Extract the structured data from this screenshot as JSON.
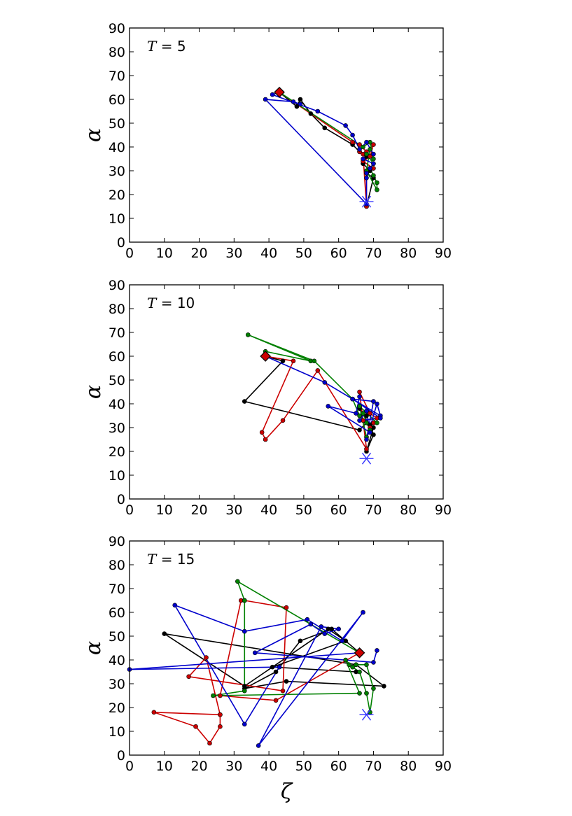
{
  "chart_data": [
    {
      "type": "line",
      "title": "T = 5",
      "title_var": "T",
      "title_value": "= 5",
      "xlabel": "",
      "ylabel": "α",
      "xlim": [
        0,
        90
      ],
      "ylim": [
        0,
        90
      ],
      "xticks": [
        0,
        10,
        20,
        30,
        40,
        50,
        60,
        70,
        80,
        90
      ],
      "yticks": [
        0,
        10,
        20,
        30,
        40,
        50,
        60,
        70,
        80,
        90
      ],
      "grid": false,
      "start_marker": {
        "x": 43,
        "y": 63,
        "color": "#cc0000"
      },
      "target_marker": {
        "x": 68,
        "y": 17,
        "color": "#3333ff"
      },
      "series": [
        {
          "color": "#000000",
          "points": [
            [
              43,
              63
            ],
            [
              48,
              57
            ],
            [
              49,
              60
            ],
            [
              52,
              54
            ],
            [
              56,
              48
            ],
            [
              64,
              41
            ],
            [
              66,
              38
            ],
            [
              68,
              36
            ],
            [
              67,
              33
            ],
            [
              69,
              30
            ],
            [
              68,
              29
            ],
            [
              70,
              27
            ],
            [
              68,
              15
            ]
          ]
        },
        {
          "color": "#cc0000",
          "points": [
            [
              43,
              63
            ],
            [
              64,
              42
            ],
            [
              66,
              41
            ],
            [
              68,
              38
            ],
            [
              70,
              41
            ],
            [
              69,
              36
            ],
            [
              67,
              34
            ],
            [
              70,
              31
            ],
            [
              68,
              30
            ],
            [
              68,
              15
            ],
            [
              67,
              37
            ],
            [
              66,
              38
            ]
          ]
        },
        {
          "color": "#008000",
          "points": [
            [
              43,
              63
            ],
            [
              67,
              40
            ],
            [
              69,
              42
            ],
            [
              70,
              35
            ],
            [
              68,
              37
            ],
            [
              70,
              33
            ],
            [
              69,
              31
            ],
            [
              70,
              28
            ],
            [
              71,
              25
            ],
            [
              71,
              22
            ],
            [
              68,
              30
            ],
            [
              69,
              39
            ]
          ]
        },
        {
          "color": "#0000cc",
          "points": [
            [
              43,
              63
            ],
            [
              41,
              62
            ],
            [
              54,
              55
            ],
            [
              62,
              49
            ],
            [
              64,
              45
            ],
            [
              66,
              39
            ],
            [
              68,
              42
            ],
            [
              70,
              37
            ],
            [
              67,
              35
            ],
            [
              70,
              33
            ],
            [
              68,
              29
            ],
            [
              69,
              31
            ],
            [
              68,
              27
            ],
            [
              68,
              16
            ],
            [
              39,
              60
            ],
            [
              47,
              59
            ],
            [
              49,
              58
            ]
          ]
        }
      ]
    },
    {
      "type": "line",
      "title": "T = 10",
      "title_var": "T",
      "title_value": "= 10",
      "xlabel": "",
      "ylabel": "α",
      "xlim": [
        0,
        90
      ],
      "ylim": [
        0,
        90
      ],
      "xticks": [
        0,
        10,
        20,
        30,
        40,
        50,
        60,
        70,
        80,
        90
      ],
      "yticks": [
        0,
        10,
        20,
        30,
        40,
        50,
        60,
        70,
        80,
        90
      ],
      "grid": false,
      "start_marker": {
        "x": 39,
        "y": 60,
        "color": "#cc0000"
      },
      "target_marker": {
        "x": 68,
        "y": 17,
        "color": "#3333ff"
      },
      "series": [
        {
          "color": "#000000",
          "points": [
            [
              39,
              60
            ],
            [
              44,
              58
            ],
            [
              33,
              41
            ],
            [
              66,
              29
            ],
            [
              68,
              32
            ],
            [
              70,
              30
            ],
            [
              68,
              20
            ],
            [
              70,
              27
            ],
            [
              69,
              31
            ],
            [
              66,
              38
            ],
            [
              68,
              35
            ]
          ]
        },
        {
          "color": "#cc0000",
          "points": [
            [
              39,
              60
            ],
            [
              47,
              58
            ],
            [
              38,
              28
            ],
            [
              39,
              25
            ],
            [
              44,
              33
            ],
            [
              54,
              54
            ],
            [
              68,
              21
            ],
            [
              66,
              45
            ],
            [
              69,
              36
            ],
            [
              71,
              34
            ],
            [
              67,
              33
            ],
            [
              69,
              30
            ],
            [
              70,
              32
            ]
          ]
        },
        {
          "color": "#008000",
          "points": [
            [
              39,
              60
            ],
            [
              39,
              62
            ],
            [
              52,
              58
            ],
            [
              34,
              69
            ],
            [
              53,
              58
            ],
            [
              64,
              42
            ],
            [
              66,
              35
            ],
            [
              68,
              32
            ],
            [
              71,
              32
            ],
            [
              66,
              39
            ],
            [
              68,
              26
            ],
            [
              69,
              29
            ],
            [
              67,
              36
            ]
          ]
        },
        {
          "color": "#0000cc",
          "points": [
            [
              39,
              60
            ],
            [
              56,
              49
            ],
            [
              72,
              35
            ],
            [
              71,
              40
            ],
            [
              68,
              25
            ],
            [
              70,
              41
            ],
            [
              64,
              42
            ],
            [
              72,
              34
            ],
            [
              66,
              33
            ],
            [
              68,
              37
            ],
            [
              69,
              28
            ],
            [
              57,
              39
            ],
            [
              65,
              36
            ],
            [
              66,
              43
            ]
          ]
        }
      ]
    },
    {
      "type": "line",
      "title": "T = 15",
      "title_var": "T",
      "title_value": "= 15",
      "xlabel": "ζ",
      "ylabel": "α",
      "xlim": [
        0,
        90
      ],
      "ylim": [
        0,
        90
      ],
      "xticks": [
        0,
        10,
        20,
        30,
        40,
        50,
        60,
        70,
        80,
        90
      ],
      "yticks": [
        0,
        10,
        20,
        30,
        40,
        50,
        60,
        70,
        80,
        90
      ],
      "grid": false,
      "start_marker": {
        "x": 66,
        "y": 43,
        "color": "#cc0000"
      },
      "target_marker": {
        "x": 68,
        "y": 17,
        "color": "#3333ff"
      },
      "series": [
        {
          "color": "#000000",
          "points": [
            [
              66,
              43
            ],
            [
              62,
              48
            ],
            [
              58,
              53
            ],
            [
              49,
              48
            ],
            [
              42,
              35
            ],
            [
              33,
              28
            ],
            [
              45,
              31
            ],
            [
              73,
              29
            ],
            [
              65,
              38
            ],
            [
              10,
              51
            ],
            [
              33,
              29
            ],
            [
              57,
              53
            ],
            [
              62,
              48
            ],
            [
              41,
              37
            ],
            [
              65,
              35
            ]
          ]
        },
        {
          "color": "#cc0000",
          "points": [
            [
              66,
              43
            ],
            [
              42,
              23
            ],
            [
              26,
              25
            ],
            [
              32,
              65
            ],
            [
              33,
              65
            ],
            [
              45,
              62
            ],
            [
              44,
              27
            ],
            [
              17,
              33
            ],
            [
              22,
              41
            ],
            [
              26,
              17
            ],
            [
              7,
              18
            ],
            [
              19,
              12
            ],
            [
              23,
              5
            ],
            [
              26,
              12
            ],
            [
              26,
              17
            ]
          ]
        },
        {
          "color": "#008000",
          "points": [
            [
              66,
              43
            ],
            [
              31,
              73
            ],
            [
              33,
              65
            ],
            [
              33,
              27
            ],
            [
              24,
              25
            ],
            [
              66,
              26
            ],
            [
              62,
              40
            ],
            [
              64,
              37
            ],
            [
              65,
              38
            ],
            [
              68,
              38
            ],
            [
              70,
              28
            ],
            [
              69,
              18
            ],
            [
              68,
              26
            ],
            [
              66,
              35
            ],
            [
              63,
              38
            ]
          ]
        },
        {
          "color": "#0000cc",
          "points": [
            [
              66,
              43
            ],
            [
              0,
              36
            ],
            [
              43,
              37
            ],
            [
              33,
              13
            ],
            [
              13,
              63
            ],
            [
              33,
              52
            ],
            [
              51,
              57
            ],
            [
              61,
              48
            ],
            [
              67,
              60
            ],
            [
              37,
              4
            ],
            [
              55,
              54
            ],
            [
              60,
              53
            ],
            [
              56,
              51
            ],
            [
              52,
              55
            ],
            [
              36,
              43
            ],
            [
              70,
              39
            ],
            [
              71,
              44
            ]
          ]
        }
      ]
    }
  ]
}
